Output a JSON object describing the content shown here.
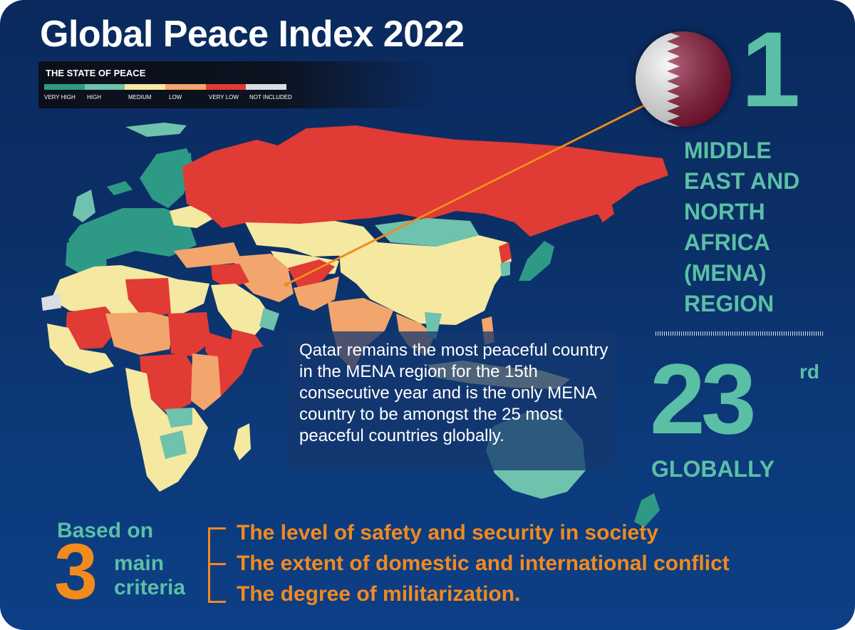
{
  "title": "Global Peace Index 2022",
  "legend": {
    "title": "THE STATE OF PEACE",
    "items": [
      {
        "label": "VERY HIGH",
        "color": "#2e9a86"
      },
      {
        "label": "HIGH",
        "color": "#6fc2ad"
      },
      {
        "label": "MEDIUM",
        "color": "#f5e8a0"
      },
      {
        "label": "LOW",
        "color": "#f2a56c"
      },
      {
        "label": "VERY LOW",
        "color": "#e03b34"
      },
      {
        "label": "NOT INCLUDED",
        "color": "#d9dde3"
      }
    ]
  },
  "rank_region": {
    "rank": "1",
    "lines": [
      "MIDDLE",
      "EAST AND",
      "NORTH",
      "AFRICA",
      "(MENA)",
      "REGION"
    ]
  },
  "rank_global": {
    "rank": "23",
    "suffix": "rd",
    "label": "GLOBALLY"
  },
  "description": "Qatar remains the most peaceful country in the MENA region for the 15th consecutive year and is the only MENA country to be amongst the 25 most peaceful countries globally.",
  "criteria": {
    "based_on": "Based on",
    "number": "3",
    "main": "main",
    "criteria_word": "criteria",
    "items": [
      "The level of safety and security in society",
      "The extent of domestic and international conflict",
      "The degree of militarization."
    ]
  },
  "colors": {
    "accent_teal": "#5bbfa5",
    "accent_orange": "#f28a1e",
    "background": "#0b2f66",
    "qatar_maroon": "#8a1538"
  },
  "flag": "qatar-flag"
}
